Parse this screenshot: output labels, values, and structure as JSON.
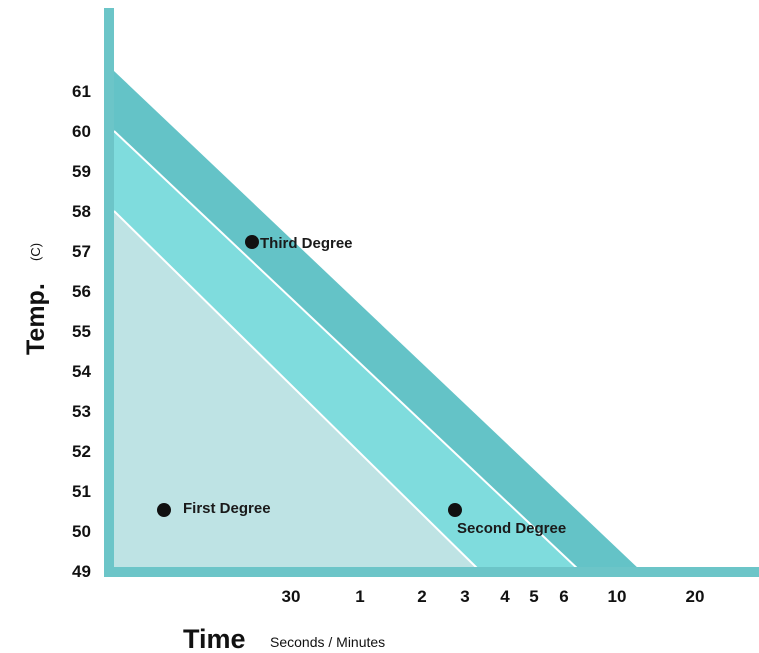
{
  "chart_data": {
    "type": "area",
    "ylabel": "Temp.",
    "ylabel_unit": "(C)",
    "xlabel": "Time",
    "xlabel_unit": "Seconds / Minutes",
    "y_ticks": [
      "49",
      "50",
      "51",
      "52",
      "53",
      "54",
      "55",
      "56",
      "57",
      "58",
      "59",
      "60",
      "61"
    ],
    "ylim": [
      49,
      61.5
    ],
    "x_ticks": [
      "30",
      "1",
      "2",
      "3",
      "4",
      "5",
      "6",
      "10",
      "20"
    ],
    "colors": {
      "axis": "#6cc5c8",
      "first_degree": "#bee3e4",
      "second_degree": "#7fdcdd",
      "third_degree": "#64c3c7",
      "boundary_line": "#ffffff",
      "marker": "#111111"
    },
    "bands": [
      {
        "name": "first_degree",
        "start_temp": 58,
        "end_tick": "3"
      },
      {
        "name": "second_degree",
        "start_temp": 60,
        "end_tick": "6"
      },
      {
        "name": "third_degree",
        "start_temp": 61.5,
        "end_tick": "10"
      }
    ],
    "annotations": [
      {
        "label": "Third Degree",
        "temp": 57.3,
        "label_side": "right"
      },
      {
        "label": "First Degree",
        "temp": 50.6,
        "label_side": "right"
      },
      {
        "label": "Second Degree",
        "temp": 50.6,
        "label_side": "below"
      }
    ]
  }
}
